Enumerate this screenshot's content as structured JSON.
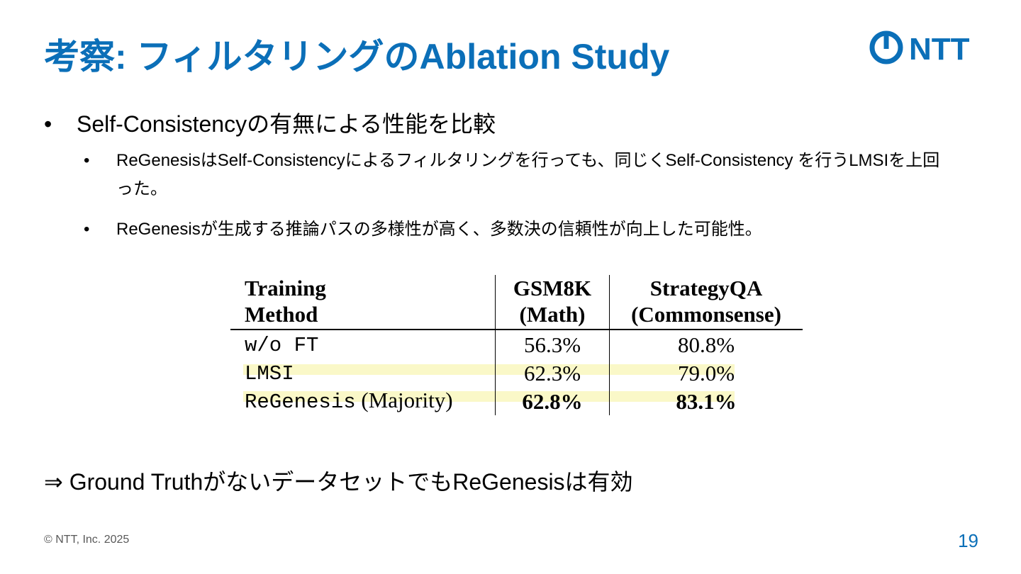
{
  "slide": {
    "title": "考察: フィルタリングのAblation Study",
    "logo_text": "NTT",
    "brand_color": "#0b6fb8",
    "bullet_main": "Self-Consistencyの有無による性能を比較",
    "bullet_symbol": "•",
    "sub_bullets": [
      "ReGenesisはSelf-Consistencyによるフィルタリングを行っても、同じくSelf-Consistency を行うLMSIを上回った。",
      "ReGenesisが生成する推論パスの多様性が高く、多数決の信頼性が向上した可能性。"
    ],
    "conclusion": "⇒ Ground TruthがないデータセットでもReGenesisは有効",
    "copyright": "© NTT, Inc.  2025",
    "page_number": "19"
  },
  "table": {
    "headers": {
      "col1_line1": "Training",
      "col1_line2": "Method",
      "col2_line1": "GSM8K",
      "col2_line2": "(Math)",
      "col3_line1": "StrategyQA",
      "col3_line2": "(Commonsense)"
    },
    "rows": [
      {
        "method": "w/o FT",
        "method_suffix": "",
        "gsm8k": "56.3%",
        "strategyqa": "80.8%"
      },
      {
        "method": "LMSI",
        "method_suffix": "",
        "gsm8k": "62.3%",
        "strategyqa": "79.0%"
      },
      {
        "method": "ReGenesis",
        "method_suffix": " (Majority)",
        "gsm8k": "62.8%",
        "strategyqa": "83.1%"
      }
    ],
    "highlight_color": "#faf8c8"
  }
}
